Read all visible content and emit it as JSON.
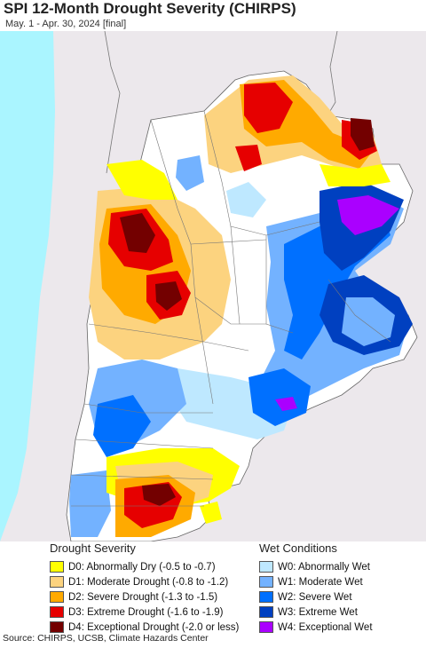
{
  "header": {
    "title": "SPI 12-Month Drought Severity (CHIRPS)",
    "subtitle": "May. 1 - Apr. 30, 2024 [final]"
  },
  "legend": {
    "drought_title": "Drought Severity",
    "wet_title": "Wet Conditions",
    "drought_items": [
      {
        "label": "D0: Abnormally Dry (-0.5 to -0.7)",
        "color": "#ffff00"
      },
      {
        "label": "D1: Moderate Drought (-0.8 to -1.2)",
        "color": "#fcd37f"
      },
      {
        "label": "D2: Severe Drought (-1.3 to -1.5)",
        "color": "#ffaa00"
      },
      {
        "label": "D3: Extreme Drought (-1.6 to -1.9)",
        "color": "#e60000"
      },
      {
        "label": "D4: Exceptional Drought (-2.0 or less)",
        "color": "#730000"
      }
    ],
    "wet_items": [
      {
        "label": "W0: Abnormally Wet",
        "color": "#bee8ff"
      },
      {
        "label": "W1: Moderate Wet",
        "color": "#73b2ff"
      },
      {
        "label": "W2: Severe Wet",
        "color": "#0070ff"
      },
      {
        "label": "W3: Extreme Wet",
        "color": "#0040c0"
      },
      {
        "label": "W4: Exceptional Wet",
        "color": "#aa00ff"
      }
    ]
  },
  "footer": {
    "source": "Source: CHIRPS, UCSB, Climate Hazards Center"
  },
  "map": {
    "ocean_color": "#aaf5ff",
    "outside_land_color": "#ece8ec",
    "boundary_color": "#666666"
  }
}
